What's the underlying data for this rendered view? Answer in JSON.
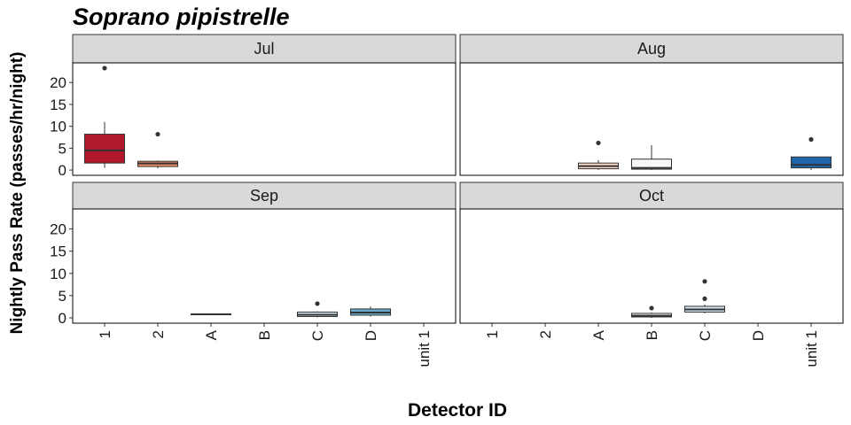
{
  "chart_data": {
    "type": "boxplot",
    "title": "Soprano pipistrelle",
    "xlabel": "Detector ID",
    "ylabel": "Nightly Pass Rate (passes/hr/night)",
    "categories": [
      "1",
      "2",
      "A",
      "B",
      "C",
      "D",
      "unit 1"
    ],
    "y_ticks": [
      0,
      5,
      10,
      15,
      20
    ],
    "ylim": [
      -1.2,
      24.5
    ],
    "grid": false,
    "legend": "none",
    "colors": {
      "1": "#b2182b",
      "2": "#ef8a62",
      "A": "#fddbc7",
      "B": "#f7f7f7",
      "C": "#d1e5f0",
      "D": "#67a9cf",
      "unit 1": "#2166ac"
    },
    "panels": [
      {
        "label": "Jul",
        "boxes": [
          {
            "category": "1",
            "min": 0.5,
            "q1": 1.6,
            "median": 4.5,
            "q3": 8.2,
            "max": 11.0,
            "outliers": [
              23.3
            ]
          },
          {
            "category": "2",
            "min": 0.4,
            "q1": 0.8,
            "median": 1.5,
            "q3": 2.0,
            "max": 2.2,
            "outliers": [
              8.2
            ]
          }
        ]
      },
      {
        "label": "Aug",
        "boxes": [
          {
            "category": "A",
            "min": 0.0,
            "q1": 0.3,
            "median": 0.9,
            "q3": 1.6,
            "max": 2.3,
            "outliers": [
              6.2
            ]
          },
          {
            "category": "B",
            "min": 0.0,
            "q1": 0.2,
            "median": 0.5,
            "q3": 2.5,
            "max": 5.7,
            "outliers": []
          },
          {
            "category": "unit 1",
            "min": 0.0,
            "q1": 0.5,
            "median": 1.2,
            "q3": 3.0,
            "max": 3.0,
            "outliers": [
              7.0
            ]
          }
        ]
      },
      {
        "label": "Sep",
        "boxes": [
          {
            "category": "A",
            "min": 0.6,
            "q1": 0.7,
            "median": 0.8,
            "q3": 0.9,
            "max": 0.9,
            "outliers": []
          },
          {
            "category": "C",
            "min": 0.1,
            "q1": 0.3,
            "median": 0.7,
            "q3": 1.3,
            "max": 1.5,
            "outliers": [
              3.2
            ]
          },
          {
            "category": "D",
            "min": 0.3,
            "q1": 0.6,
            "median": 1.2,
            "q3": 2.0,
            "max": 2.5,
            "outliers": []
          }
        ]
      },
      {
        "label": "Oct",
        "boxes": [
          {
            "category": "B",
            "min": 0.0,
            "q1": 0.2,
            "median": 0.5,
            "q3": 1.0,
            "max": 1.2,
            "outliers": [
              2.2
            ]
          },
          {
            "category": "C",
            "min": 1.0,
            "q1": 1.3,
            "median": 1.9,
            "q3": 2.6,
            "max": 3.0,
            "outliers": [
              4.3,
              8.2
            ]
          }
        ]
      }
    ]
  }
}
